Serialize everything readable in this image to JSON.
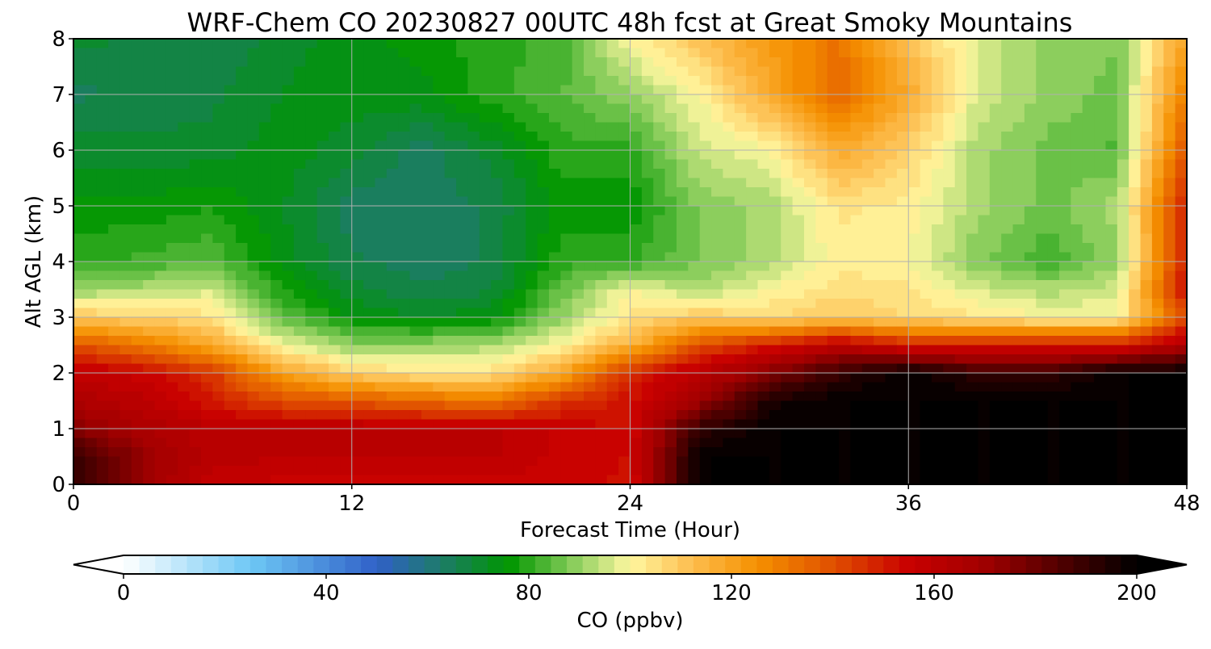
{
  "chart_data": {
    "type": "heatmap",
    "title": "WRF-Chem CO  20230827 00UTC 48h fcst at Great Smoky Mountains",
    "xlabel": "Forecast Time (Hour)",
    "ylabel": "Alt AGL (km)",
    "xlim": [
      0,
      48
    ],
    "ylim": [
      0,
      8
    ],
    "x_ticks": [
      0,
      12,
      24,
      36,
      48
    ],
    "y_ticks": [
      0,
      1,
      2,
      3,
      4,
      5,
      6,
      7,
      8
    ],
    "grid": true,
    "x": [
      0,
      3,
      6,
      9,
      12,
      15,
      18,
      21,
      24,
      27,
      30,
      33,
      36,
      39,
      42,
      45,
      48
    ],
    "y": [
      0,
      0.5,
      1,
      1.5,
      2,
      2.5,
      3,
      3.5,
      4,
      5,
      6,
      7,
      8
    ],
    "z": [
      [
        190,
        170,
        158,
        155,
        155,
        155,
        155,
        155,
        152,
        200,
        200,
        200,
        200,
        200,
        200,
        200,
        200
      ],
      [
        190,
        172,
        160,
        160,
        160,
        160,
        160,
        155,
        153,
        200,
        200,
        200,
        200,
        200,
        200,
        200,
        200
      ],
      [
        175,
        165,
        160,
        160,
        160,
        160,
        160,
        155,
        153,
        190,
        200,
        200,
        200,
        200,
        200,
        200,
        200
      ],
      [
        165,
        160,
        150,
        140,
        138,
        134,
        130,
        145,
        152,
        170,
        195,
        200,
        200,
        200,
        200,
        200,
        200
      ],
      [
        158,
        155,
        145,
        120,
        108,
        104,
        105,
        118,
        148,
        160,
        175,
        190,
        200,
        190,
        190,
        200,
        200
      ],
      [
        140,
        130,
        118,
        98,
        90,
        90,
        92,
        100,
        115,
        140,
        150,
        160,
        150,
        150,
        150,
        150,
        165
      ],
      [
        110,
        108,
        104,
        85,
        75,
        72,
        74,
        90,
        104,
        110,
        106,
        110,
        106,
        104,
        100,
        100,
        140
      ],
      [
        90,
        92,
        96,
        78,
        70,
        66,
        68,
        85,
        100,
        92,
        100,
        105,
        104,
        96,
        92,
        95,
        155
      ],
      [
        80,
        82,
        84,
        74,
        66,
        64,
        66,
        80,
        80,
        88,
        92,
        102,
        100,
        88,
        82,
        90,
        150
      ],
      [
        76,
        76,
        78,
        72,
        64,
        64,
        66,
        76,
        76,
        88,
        92,
        104,
        102,
        92,
        86,
        92,
        150
      ],
      [
        70,
        70,
        70,
        74,
        70,
        64,
        70,
        80,
        80,
        95,
        100,
        118,
        108,
        92,
        86,
        84,
        140
      ],
      [
        65,
        66,
        68,
        72,
        74,
        74,
        80,
        84,
        90,
        100,
        118,
        135,
        118,
        96,
        90,
        86,
        130
      ],
      [
        70,
        68,
        66,
        70,
        74,
        76,
        80,
        82,
        100,
        112,
        122,
        132,
        112,
        96,
        90,
        88,
        120
      ]
    ],
    "colorbar": {
      "label": "CO  (ppbv)",
      "min": 0,
      "max": 200,
      "ticks": [
        0,
        40,
        80,
        120,
        160,
        200
      ],
      "extend": "both",
      "levels": 64,
      "stops": [
        {
          "v": 0,
          "c": "#ffffff"
        },
        {
          "v": 25,
          "c": "#6ec8f5"
        },
        {
          "v": 50,
          "c": "#3060c8"
        },
        {
          "v": 62,
          "c": "#1e7a6e"
        },
        {
          "v": 76,
          "c": "#009600"
        },
        {
          "v": 90,
          "c": "#96d264"
        },
        {
          "v": 100,
          "c": "#fff8a0"
        },
        {
          "v": 112,
          "c": "#fdbe50"
        },
        {
          "v": 125,
          "c": "#f59100"
        },
        {
          "v": 140,
          "c": "#e05000"
        },
        {
          "v": 155,
          "c": "#c80000"
        },
        {
          "v": 170,
          "c": "#a00000"
        },
        {
          "v": 200,
          "c": "#000000"
        }
      ]
    }
  }
}
